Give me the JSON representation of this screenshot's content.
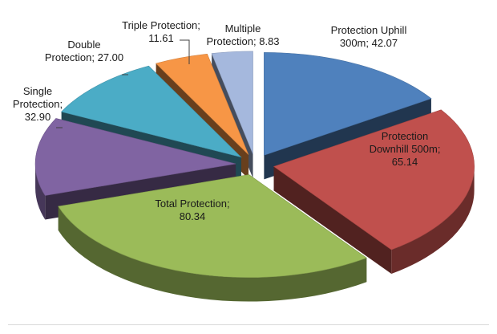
{
  "chart_data": {
    "type": "pie",
    "title": "",
    "series": [
      {
        "name": "",
        "values": [
          42.07,
          65.14,
          80.34,
          32.9,
          27.0,
          11.61,
          8.83
        ]
      }
    ],
    "categories": [
      "Protection Uphill 300m",
      "Protection Downhill 500m",
      "Total Protection",
      "Single Protection",
      "Double Protection",
      "Triple Protection",
      "Multiple Protection"
    ],
    "data_labels": [
      [
        "Protection Uphill",
        "300m; 42.07"
      ],
      [
        "Protection",
        "Downhill 500m;",
        "65.14"
      ],
      [
        "Total Protection;",
        "80.34"
      ],
      [
        "Single",
        "Protection;",
        "32.90"
      ],
      [
        "Double",
        "Protection; 27.00"
      ],
      [
        "Triple Protection;",
        "11.61"
      ],
      [
        "Multiple",
        "Protection; 8.83"
      ]
    ],
    "colors": [
      "#4f81bd",
      "#c0504d",
      "#9bbb59",
      "#8064a2",
      "#4bacc6",
      "#f79646",
      "#a5b8dd"
    ],
    "exploded": true,
    "style": "3d",
    "legend": "none"
  }
}
